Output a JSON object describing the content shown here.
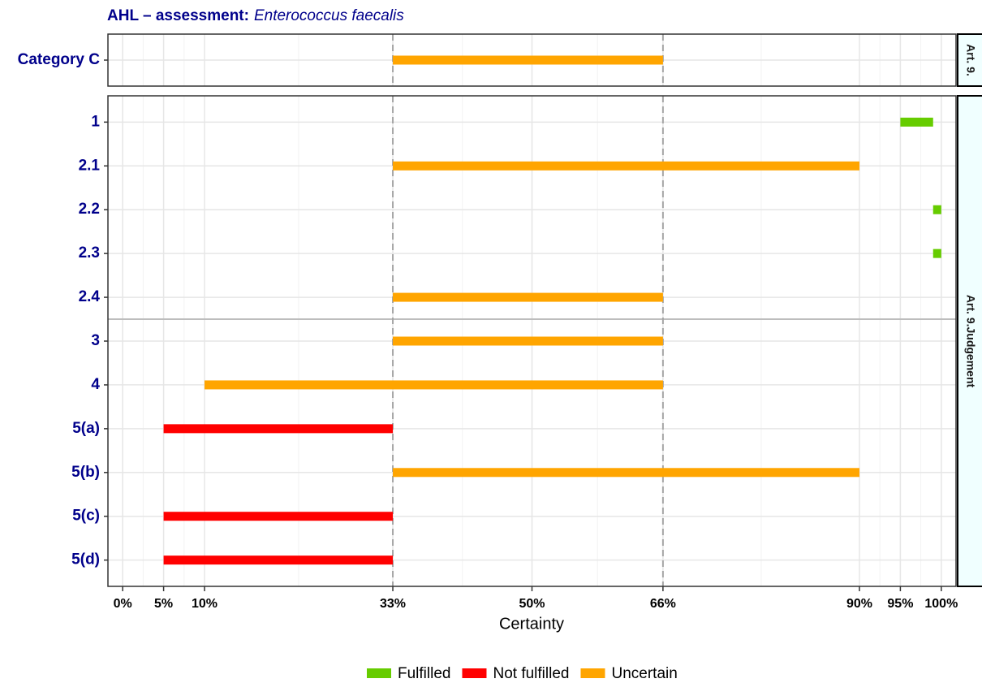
{
  "chart_data": {
    "type": "range_bar",
    "title": "AHL – assessment:",
    "title_species": "Enterococcus faecalis",
    "xlabel": "Certainty",
    "xlim": [
      -1.8,
      101.8
    ],
    "xticks": [
      {
        "value": 0,
        "label": "0%"
      },
      {
        "value": 5,
        "label": "5%"
      },
      {
        "value": 10,
        "label": "10%"
      },
      {
        "value": 33,
        "label": "33%"
      },
      {
        "value": 50,
        "label": "50%"
      },
      {
        "value": 66,
        "label": "66%"
      },
      {
        "value": 90,
        "label": "90%"
      },
      {
        "value": 95,
        "label": "95%"
      },
      {
        "value": 100,
        "label": "100%"
      }
    ],
    "reference_lines": [
      33,
      66
    ],
    "grid": true,
    "legend": "bottom",
    "series": [
      {
        "name": "Fulfilled",
        "color": "#66cc00"
      },
      {
        "name": "Not fulfilled",
        "color": "#ff0000"
      },
      {
        "name": "Uncertain",
        "color": "#ffa500"
      }
    ],
    "facets": [
      {
        "label": "Art. 9.",
        "rows": [
          {
            "category": "Category C",
            "start": 33,
            "end": 66,
            "status": "Uncertain"
          }
        ]
      },
      {
        "label": "Art. 9.Judgement",
        "rows": [
          {
            "category": "1",
            "start": 95,
            "end": 99,
            "status": "Fulfilled"
          },
          {
            "category": "2.1",
            "start": 33,
            "end": 90,
            "status": "Uncertain"
          },
          {
            "category": "2.2",
            "start": 99,
            "end": 100,
            "status": "Fulfilled"
          },
          {
            "category": "2.3",
            "start": 99,
            "end": 100,
            "status": "Fulfilled"
          },
          {
            "category": "2.4",
            "start": 33,
            "end": 66,
            "status": "Uncertain"
          },
          {
            "category": "3",
            "start": 33,
            "end": 66,
            "status": "Uncertain"
          },
          {
            "category": "4",
            "start": 10,
            "end": 66,
            "status": "Uncertain"
          },
          {
            "category": "5(a)",
            "start": 5,
            "end": 33,
            "status": "Not fulfilled"
          },
          {
            "category": "5(b)",
            "start": 33,
            "end": 90,
            "status": "Uncertain"
          },
          {
            "category": "5(c)",
            "start": 5,
            "end": 33,
            "status": "Not fulfilled"
          },
          {
            "category": "5(d)",
            "start": 5,
            "end": 33,
            "status": "Not fulfilled"
          }
        ]
      }
    ]
  }
}
